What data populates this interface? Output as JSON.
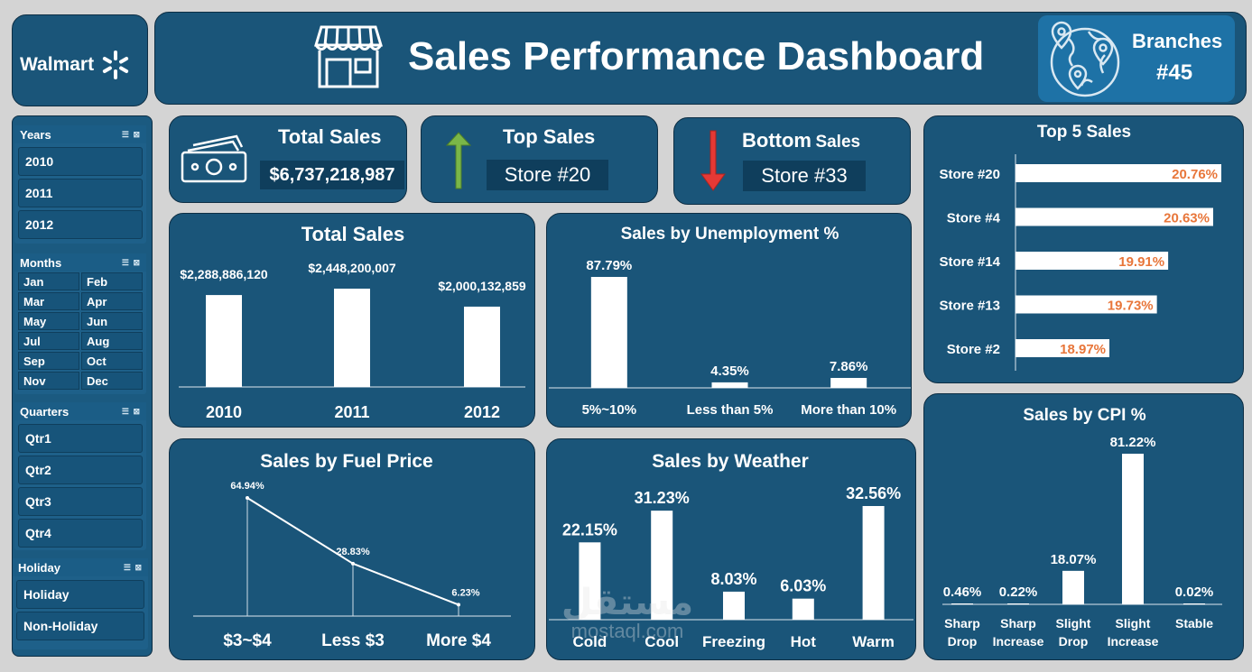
{
  "brand": {
    "name": "Walmart"
  },
  "header": {
    "title": "Sales Performance Dashboard"
  },
  "branches": {
    "label": "Branches",
    "value": "#45"
  },
  "slicers": {
    "years": {
      "label": "Years",
      "items": [
        "2010",
        "2011",
        "2012"
      ]
    },
    "months": {
      "label": "Months",
      "items": [
        "Jan",
        "Feb",
        "Mar",
        "Apr",
        "May",
        "Jun",
        "Jul",
        "Aug",
        "Sep",
        "Oct",
        "Nov",
        "Dec"
      ]
    },
    "quarters": {
      "label": "Quarters",
      "items": [
        "Qtr1",
        "Qtr2",
        "Qtr3",
        "Qtr4"
      ]
    },
    "holiday": {
      "label": "Holiday",
      "items": [
        "Holiday",
        "Non-Holiday"
      ]
    }
  },
  "kpis": {
    "total_sales": {
      "title": "Total Sales",
      "value": "$6,737,218,987"
    },
    "top_sales": {
      "title": "Top Sales",
      "value": "Store #20"
    },
    "bottom_sales": {
      "title_main": "Bottom",
      "title_sub": "Sales",
      "value": "Store #33"
    }
  },
  "watermark": {
    "arabic": "مستقل",
    "latin": "mostaql.com"
  },
  "chart_data": [
    {
      "id": "total_sales_by_year",
      "type": "bar",
      "title": "Total Sales",
      "categories": [
        "2010",
        "2011",
        "2012"
      ],
      "values": [
        2288886120,
        2448200007,
        2000132859
      ],
      "labels": [
        "$2,288,886,120",
        "$2,448,200,007",
        "$2,000,132,859"
      ]
    },
    {
      "id": "sales_by_unemployment",
      "type": "bar",
      "title": "Sales by Unemployment %",
      "categories": [
        "5%~10%",
        "Less than 5%",
        "More than 10%"
      ],
      "values": [
        87.79,
        4.35,
        7.86
      ],
      "labels": [
        "87.79%",
        "4.35%",
        "7.86%"
      ]
    },
    {
      "id": "top5_sales",
      "type": "bar",
      "orientation": "horizontal",
      "title": "Top 5 Sales",
      "categories": [
        "Store #20",
        "Store #4",
        "Store #14",
        "Store #13",
        "Store #2"
      ],
      "values": [
        20.76,
        20.63,
        19.91,
        19.73,
        18.97
      ],
      "labels": [
        "20.76%",
        "20.63%",
        "19.91%",
        "19.73%",
        "18.97%"
      ]
    },
    {
      "id": "sales_by_fuel_price",
      "type": "line",
      "title": "Sales by Fuel Price",
      "categories": [
        "$3~$4",
        "Less $3",
        "More $4"
      ],
      "values": [
        64.94,
        28.83,
        6.23
      ],
      "labels": [
        "64.94%",
        "28.83%",
        "6.23%"
      ]
    },
    {
      "id": "sales_by_weather",
      "type": "bar",
      "title": "Sales by Weather",
      "categories": [
        "Cold",
        "Cool",
        "Freezing",
        "Hot",
        "Warm"
      ],
      "values": [
        22.15,
        31.23,
        8.03,
        6.03,
        32.56
      ],
      "labels": [
        "22.15%",
        "31.23%",
        "8.03%",
        "6.03%",
        "32.56%"
      ]
    },
    {
      "id": "sales_by_cpi",
      "type": "bar",
      "title": "Sales by CPI %",
      "categories": [
        [
          "Sharp",
          "Drop"
        ],
        [
          "Sharp",
          "Increase"
        ],
        [
          "Slight",
          "Drop"
        ],
        [
          "Slight",
          "Increase"
        ],
        [
          "Stable"
        ]
      ],
      "values": [
        0.46,
        0.22,
        18.07,
        81.22,
        0.02
      ],
      "labels": [
        "0.46%",
        "0.22%",
        "18.07%",
        "81.22%",
        "0.02%"
      ]
    }
  ],
  "colors": {
    "panel": "#1a5579",
    "background": "#d4d4d4",
    "bar": "#ffffff",
    "top5_label": "#e8763a",
    "up_arrow": "#7ab648",
    "down_arrow": "#e53935"
  }
}
